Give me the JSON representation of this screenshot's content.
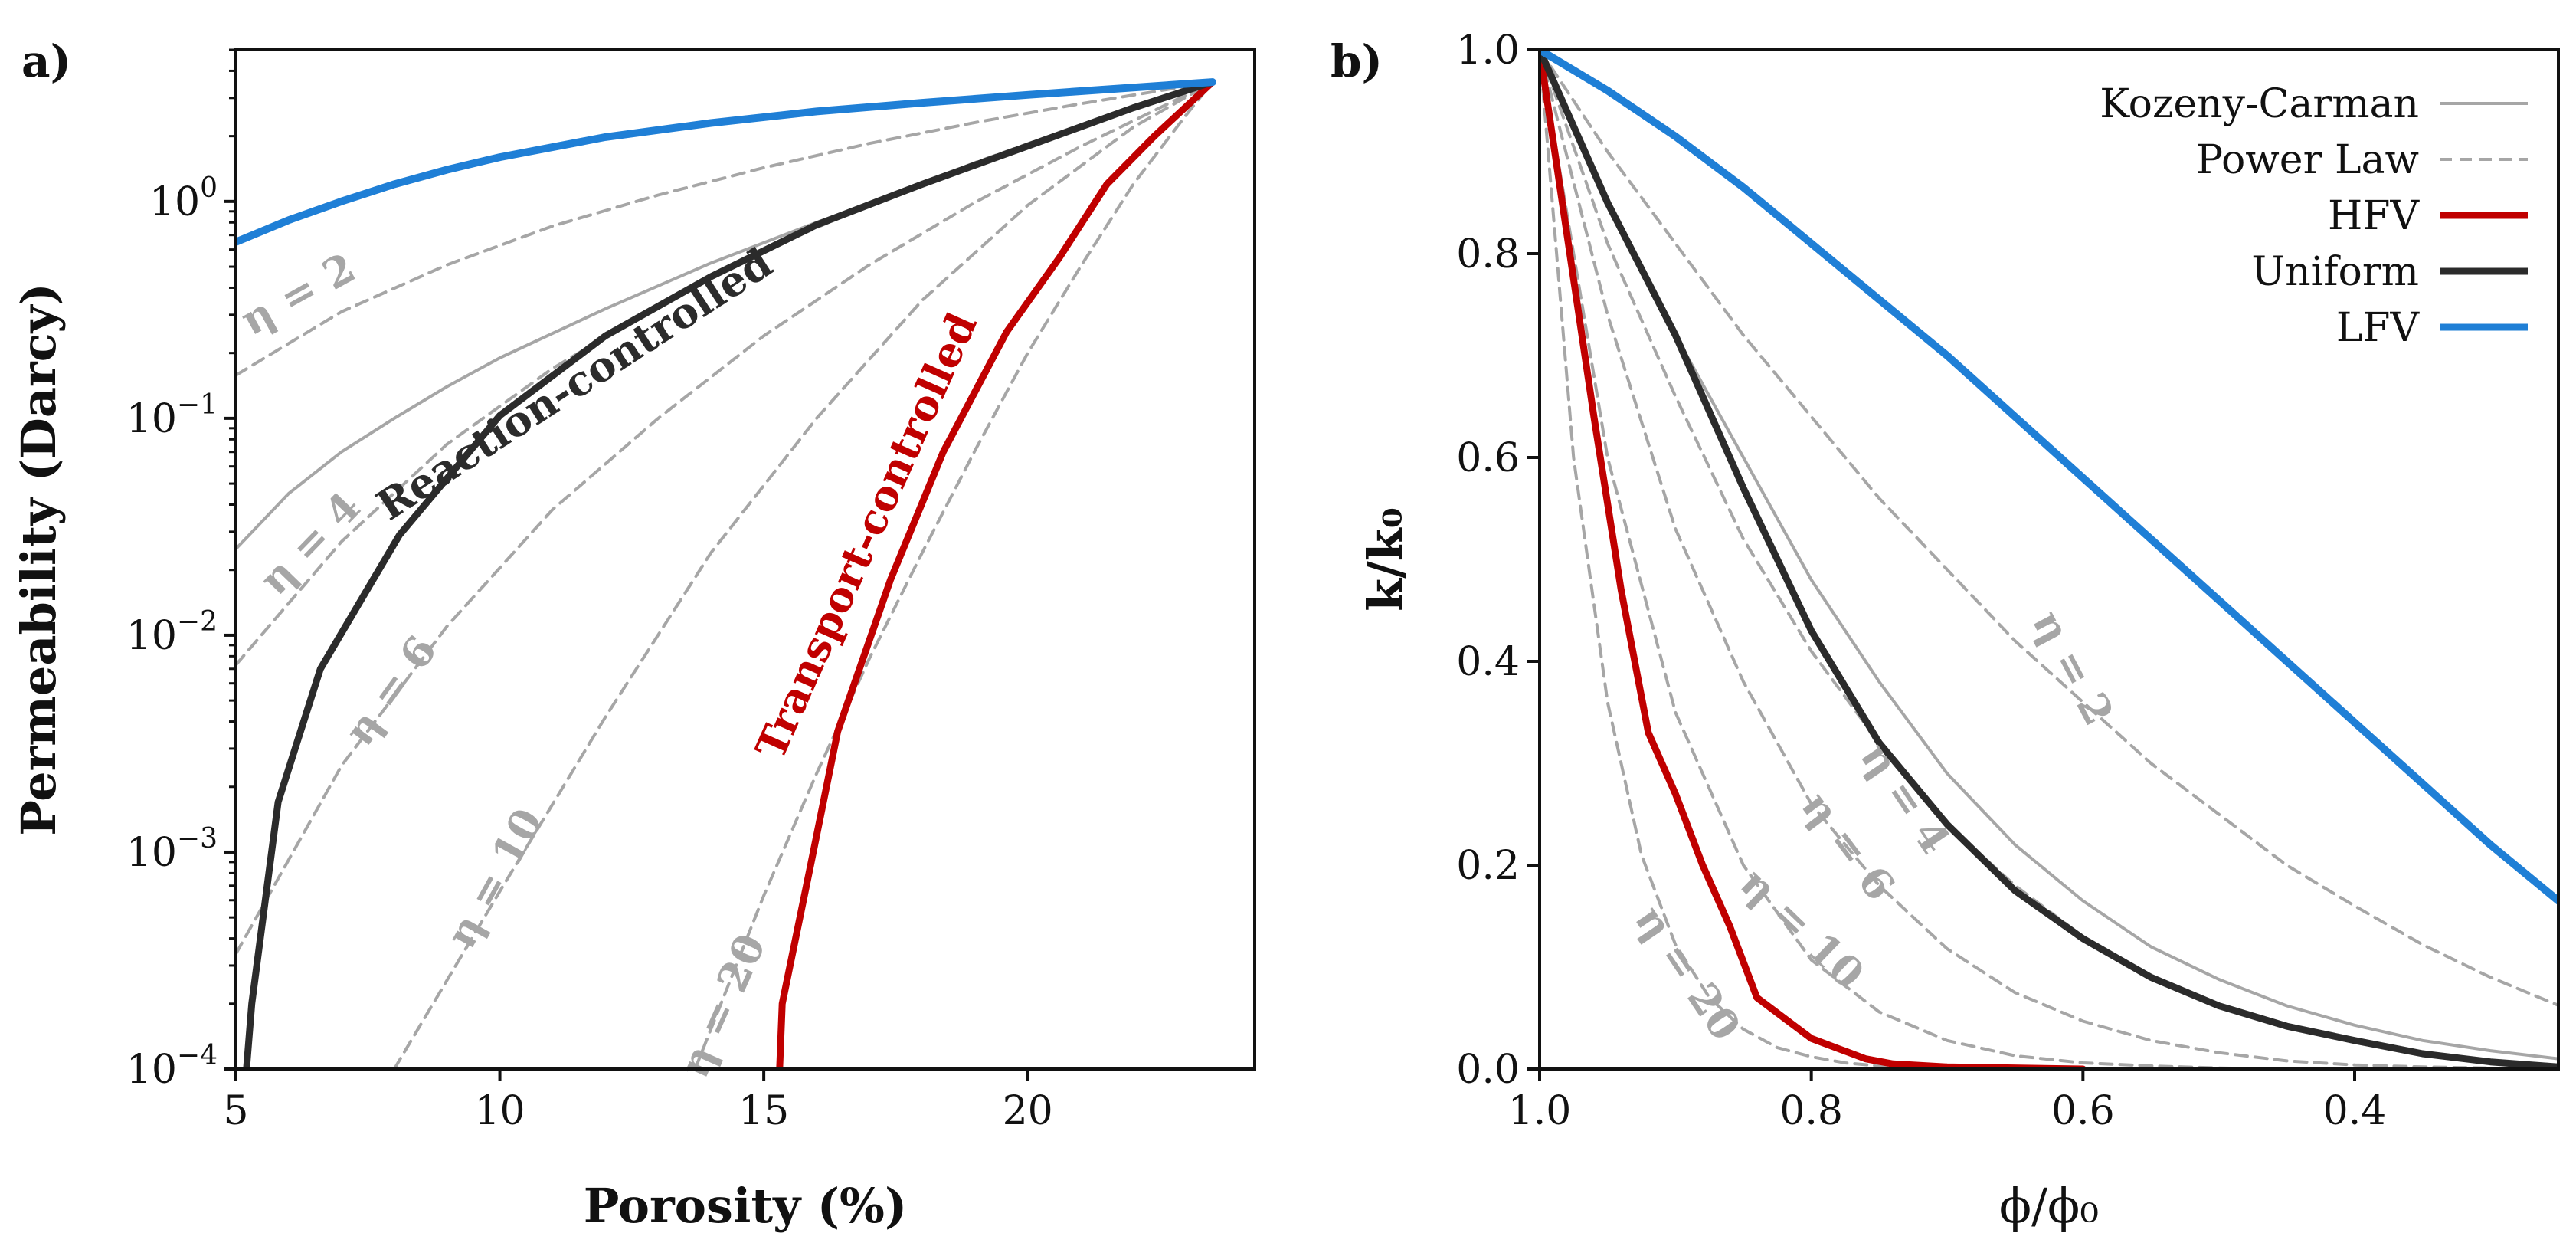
{
  "chart_data": [
    {
      "panel": "a)",
      "type": "line",
      "xlabel": "Porosity (%)",
      "ylabel": "Permeability (Darcy)",
      "xlim": [
        5,
        24.3
      ],
      "ylim": [
        0.0001,
        5
      ],
      "yscale": "log",
      "xticks": [
        5,
        10,
        15,
        20
      ],
      "yticks": [
        {
          "value": 1,
          "base": "10",
          "exp": "0"
        },
        {
          "value": 0.1,
          "base": "10",
          "exp": "−1"
        },
        {
          "value": 0.01,
          "base": "10",
          "exp": "−2"
        },
        {
          "value": 0.001,
          "base": "10",
          "exp": "−3"
        },
        {
          "value": 0.0001,
          "base": "10",
          "exp": "−4"
        }
      ],
      "series": [
        {
          "style": "kc",
          "x": [
            5,
            6,
            7,
            8,
            9,
            10,
            12,
            14,
            16,
            18,
            20,
            22,
            23.5
          ],
          "y": [
            0.025,
            0.045,
            0.07,
            0.1,
            0.14,
            0.19,
            0.32,
            0.52,
            0.8,
            1.2,
            1.8,
            2.7,
            3.5
          ]
        },
        {
          "style": "pl",
          "eta": 2,
          "x": [
            5,
            7,
            9,
            11,
            13,
            15,
            17,
            19,
            21,
            23.5
          ],
          "y": [
            0.158,
            0.31,
            0.51,
            0.77,
            1.07,
            1.43,
            1.85,
            2.31,
            2.82,
            3.55
          ]
        },
        {
          "style": "pl",
          "eta": 4,
          "x": [
            5,
            7,
            9,
            11,
            13,
            15,
            17,
            19,
            21,
            23.5
          ],
          "y": [
            0.0073,
            0.027,
            0.076,
            0.17,
            0.33,
            0.59,
            0.97,
            1.51,
            2.25,
            3.55
          ]
        },
        {
          "style": "pl",
          "eta": 6,
          "x": [
            5,
            7,
            9,
            11,
            13,
            15,
            17,
            19,
            21,
            23.5
          ],
          "y": [
            0.00034,
            0.0025,
            0.011,
            0.038,
            0.1,
            0.24,
            0.51,
            0.99,
            1.79,
            3.55
          ]
        },
        {
          "style": "pl",
          "eta": 10,
          "x": [
            8,
            10,
            12,
            14,
            16,
            18,
            20,
            22,
            23.5
          ],
          "y": [
            0.0001,
            0.00066,
            0.0042,
            0.024,
            0.1,
            0.35,
            0.96,
            2.2,
            3.55
          ]
        },
        {
          "style": "pl",
          "eta": 20,
          "x": [
            13.7,
            15,
            16,
            17,
            18,
            19,
            20,
            21,
            22,
            23,
            23.5
          ],
          "y": [
            0.0001,
            0.00063,
            0.0023,
            0.0078,
            0.024,
            0.071,
            0.2,
            0.5,
            1.2,
            2.5,
            3.55
          ]
        },
        {
          "style": "hfv",
          "x": [
            15.3,
            15.35,
            15.9,
            16.4,
            17.4,
            18.4,
            19.6,
            20.6,
            21.5,
            22.4,
            23.5
          ],
          "y": [
            0.0001,
            0.0002,
            0.0009,
            0.0036,
            0.018,
            0.07,
            0.25,
            0.55,
            1.2,
            2.0,
            3.55
          ]
        },
        {
          "style": "uniform",
          "x": [
            5.2,
            5.3,
            5.8,
            6.6,
            8.1,
            10.0,
            12.0,
            14.0,
            16.0,
            18.0,
            20.0,
            22.0,
            23.5
          ],
          "y": [
            0.0001,
            0.0002,
            0.0017,
            0.007,
            0.029,
            0.103,
            0.24,
            0.45,
            0.78,
            1.2,
            1.8,
            2.7,
            3.55
          ]
        },
        {
          "style": "lfv",
          "x": [
            5,
            6,
            7,
            8,
            9,
            10,
            12,
            14,
            16,
            18,
            20,
            22,
            23.5
          ],
          "y": [
            0.65,
            0.82,
            1.0,
            1.2,
            1.4,
            1.6,
            1.98,
            2.3,
            2.6,
            2.85,
            3.1,
            3.35,
            3.55
          ]
        }
      ],
      "annotations": [
        {
          "text": "η = 2",
          "style": "gray"
        },
        {
          "text": "η = 4",
          "style": "gray"
        },
        {
          "text": "η = 6",
          "style": "gray"
        },
        {
          "text": "η = 10",
          "style": "gray"
        },
        {
          "text": "η = 20",
          "style": "gray"
        },
        {
          "text": "Reaction-controlled",
          "style": "black"
        },
        {
          "text": "Transport-controlled",
          "style": "red"
        }
      ]
    },
    {
      "panel": "b)",
      "type": "line",
      "xlabel": "ϕ/ϕ₀",
      "ylabel": "k/k₀",
      "xlim": [
        1.0,
        0.25
      ],
      "ylim": [
        0,
        1
      ],
      "xticks": [
        {
          "value": 1.0,
          "label": "1.0"
        },
        {
          "value": 0.8,
          "label": "0.8"
        },
        {
          "value": 0.6,
          "label": "0.6"
        },
        {
          "value": 0.4,
          "label": "0.4"
        }
      ],
      "yticks": [
        {
          "value": 0,
          "label": "0.0"
        },
        {
          "value": 0.2,
          "label": "0.2"
        },
        {
          "value": 0.4,
          "label": "0.4"
        },
        {
          "value": 0.6,
          "label": "0.6"
        },
        {
          "value": 0.8,
          "label": "0.8"
        },
        {
          "value": 1.0,
          "label": "1.0"
        }
      ],
      "legend": {
        "placement": "top-right",
        "entries": [
          {
            "label": "Kozeny-Carman",
            "style": "kc"
          },
          {
            "label": "Power Law",
            "style": "pl"
          },
          {
            "label": "HFV",
            "style": "hfv"
          },
          {
            "label": "Uniform",
            "style": "uniform"
          },
          {
            "label": "LFV",
            "style": "lfv"
          }
        ]
      },
      "series": [
        {
          "style": "kc",
          "x": [
            1.0,
            0.95,
            0.9,
            0.85,
            0.8,
            0.75,
            0.7,
            0.65,
            0.6,
            0.55,
            0.5,
            0.45,
            0.4,
            0.35,
            0.3,
            0.25
          ],
          "y": [
            1.0,
            0.85,
            0.72,
            0.6,
            0.48,
            0.38,
            0.29,
            0.22,
            0.165,
            0.12,
            0.088,
            0.062,
            0.043,
            0.028,
            0.018,
            0.01
          ]
        },
        {
          "style": "pl",
          "eta": 2,
          "x": [
            1.0,
            0.95,
            0.9,
            0.85,
            0.8,
            0.75,
            0.7,
            0.65,
            0.6,
            0.55,
            0.5,
            0.45,
            0.4,
            0.35,
            0.3,
            0.25
          ],
          "y": [
            1.0,
            0.9,
            0.81,
            0.72,
            0.64,
            0.56,
            0.49,
            0.42,
            0.36,
            0.3,
            0.25,
            0.2,
            0.16,
            0.122,
            0.09,
            0.0625
          ]
        },
        {
          "style": "pl",
          "eta": 4,
          "x": [
            1.0,
            0.95,
            0.9,
            0.85,
            0.8,
            0.75,
            0.7,
            0.65,
            0.6,
            0.55,
            0.5,
            0.45,
            0.4,
            0.35,
            0.3,
            0.25
          ],
          "y": [
            1.0,
            0.81,
            0.66,
            0.52,
            0.41,
            0.32,
            0.24,
            0.18,
            0.13,
            0.092,
            0.0625,
            0.041,
            0.026,
            0.015,
            0.008,
            0.004
          ]
        },
        {
          "style": "pl",
          "eta": 6,
          "x": [
            1.0,
            0.95,
            0.9,
            0.85,
            0.8,
            0.75,
            0.7,
            0.65,
            0.6,
            0.55,
            0.5,
            0.45,
            0.4,
            0.35,
            0.3
          ],
          "y": [
            1.0,
            0.74,
            0.53,
            0.38,
            0.26,
            0.18,
            0.118,
            0.075,
            0.047,
            0.028,
            0.016,
            0.008,
            0.004,
            0.002,
            0.001
          ]
        },
        {
          "style": "pl",
          "eta": 10,
          "x": [
            1.0,
            0.95,
            0.9,
            0.85,
            0.8,
            0.75,
            0.7,
            0.65,
            0.6,
            0.55,
            0.5,
            0.45,
            0.4
          ],
          "y": [
            1.0,
            0.6,
            0.35,
            0.2,
            0.107,
            0.056,
            0.028,
            0.013,
            0.006,
            0.003,
            0.001,
            0.0,
            0.0
          ]
        },
        {
          "style": "pl",
          "eta": 20,
          "x": [
            1.0,
            0.975,
            0.95,
            0.925,
            0.9,
            0.875,
            0.85,
            0.825,
            0.8,
            0.775,
            0.75,
            0.7,
            0.65,
            0.6
          ],
          "y": [
            1.0,
            0.6,
            0.36,
            0.21,
            0.122,
            0.07,
            0.039,
            0.021,
            0.012,
            0.006,
            0.003,
            0.001,
            0.0,
            0.0
          ]
        },
        {
          "style": "hfv",
          "x": [
            1.0,
            0.98,
            0.96,
            0.94,
            0.92,
            0.9,
            0.88,
            0.86,
            0.84,
            0.82,
            0.8,
            0.78,
            0.76,
            0.74,
            0.7,
            0.6
          ],
          "y": [
            1.0,
            0.82,
            0.64,
            0.47,
            0.33,
            0.27,
            0.2,
            0.14,
            0.07,
            0.05,
            0.03,
            0.02,
            0.01,
            0.005,
            0.002,
            0.0
          ]
        },
        {
          "style": "uniform",
          "x": [
            1.0,
            0.95,
            0.9,
            0.85,
            0.8,
            0.75,
            0.7,
            0.65,
            0.6,
            0.55,
            0.5,
            0.45,
            0.4,
            0.35,
            0.3,
            0.25
          ],
          "y": [
            1.0,
            0.85,
            0.72,
            0.57,
            0.43,
            0.32,
            0.24,
            0.175,
            0.128,
            0.09,
            0.062,
            0.042,
            0.028,
            0.015,
            0.007,
            0.002
          ]
        },
        {
          "style": "lfv",
          "x": [
            1.0,
            0.95,
            0.9,
            0.85,
            0.8,
            0.75,
            0.7,
            0.65,
            0.6,
            0.55,
            0.5,
            0.45,
            0.4,
            0.35,
            0.3,
            0.25
          ],
          "y": [
            1.0,
            0.96,
            0.915,
            0.865,
            0.81,
            0.755,
            0.7,
            0.64,
            0.58,
            0.52,
            0.46,
            0.4,
            0.34,
            0.28,
            0.22,
            0.165
          ]
        }
      ],
      "annotations": [
        {
          "text": "η = 2",
          "style": "gray"
        },
        {
          "text": "η = 4",
          "style": "gray"
        },
        {
          "text": "η = 6",
          "style": "gray"
        },
        {
          "text": "η = 10",
          "style": "gray"
        },
        {
          "text": "η = 20",
          "style": "gray"
        }
      ]
    }
  ],
  "colors": {
    "kc": "#a6a6a6",
    "pl": "#a6a6a6",
    "hfv": "#c00000",
    "uniform": "#2b2b2b",
    "lfv": "#1f7fd6",
    "axis": "#111111"
  }
}
